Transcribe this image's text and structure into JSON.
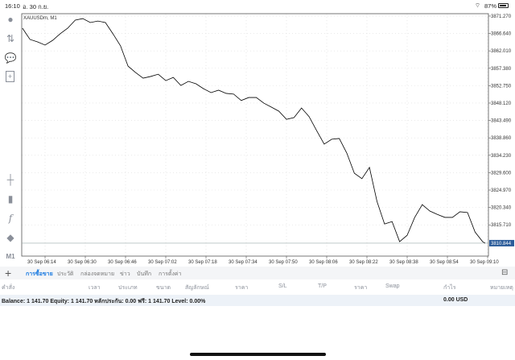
{
  "status": {
    "time": "16:10",
    "date": "อ. 30 ก.ย.",
    "battery": "87%"
  },
  "toolbar": {
    "icons": [
      "person-icon",
      "arrows-icon",
      "chat-icon",
      "add-document-icon",
      "crosshair-icon",
      "candlestick-icon",
      "function-icon",
      "shapes-icon"
    ],
    "timeframe": "M1"
  },
  "chart_data": {
    "type": "line",
    "title": "XAUUSDm, M1",
    "x": [
      "06:05",
      "06:08",
      "06:11",
      "06:14",
      "06:17",
      "06:20",
      "06:23",
      "06:26",
      "06:29",
      "06:32",
      "06:35",
      "06:38",
      "06:41",
      "06:44",
      "06:47",
      "06:50",
      "06:53",
      "06:56",
      "06:59",
      "07:02",
      "07:05",
      "07:08",
      "07:11",
      "07:14",
      "07:17",
      "07:20",
      "07:23",
      "07:26",
      "07:29",
      "07:32",
      "07:35",
      "07:38",
      "07:41",
      "07:44",
      "07:47",
      "07:50",
      "07:53",
      "07:56",
      "07:59",
      "08:02",
      "08:05",
      "08:08",
      "08:11",
      "08:14",
      "08:17",
      "08:20",
      "08:23",
      "08:26",
      "08:29",
      "08:32",
      "08:35",
      "08:38",
      "08:41",
      "08:44",
      "08:47",
      "08:50",
      "08:53",
      "08:56",
      "08:59",
      "09:02",
      "09:05",
      "09:08",
      "09:09"
    ],
    "y": [
      3868.05,
      3865.05,
      3864.4,
      3863.55,
      3864.8,
      3866.55,
      3868.05,
      3870.2,
      3870.6,
      3869.55,
      3869.95,
      3869.55,
      3866.55,
      3863.35,
      3857.95,
      3856.25,
      3854.75,
      3855.2,
      3855.8,
      3854.1,
      3854.95,
      3852.8,
      3853.9,
      3853.25,
      3851.95,
      3850.9,
      3851.55,
      3850.7,
      3850.5,
      3848.8,
      3849.6,
      3849.6,
      3848.1,
      3847.05,
      3845.95,
      3843.8,
      3844.25,
      3846.8,
      3844.5,
      3840.8,
      3837.2,
      3838.5,
      3838.7,
      3834.8,
      3829.45,
      3828.0,
      3831.0,
      3821.95,
      3815.95,
      3816.6,
      3811.25,
      3812.95,
      3817.7,
      3821.1,
      3819.4,
      3818.5,
      3817.7,
      3817.7,
      3819.2,
      3819.0,
      3813.8,
      3811.25,
      3810.844
    ],
    "x_ticks": [
      "30 Sep 06:14",
      "30 Sep 06:30",
      "30 Sep 06:46",
      "30 Sep 07:02",
      "30 Sep 07:18",
      "30 Sep 07:34",
      "30 Sep 07:50",
      "30 Sep 08:06",
      "30 Sep 08:22",
      "30 Sep 08:38",
      "30 Sep 08:54",
      "30 Sep 09:10"
    ],
    "y_ticks": [
      "3871.270",
      "3866.640",
      "3862.010",
      "3857.380",
      "3852.750",
      "3848.120",
      "3843.490",
      "3838.860",
      "3834.230",
      "3829.600",
      "3824.970",
      "3820.340",
      "3815.710"
    ],
    "current_price": "3810.844",
    "ylim": [
      3807.4,
      3871.9
    ],
    "grid": true,
    "colors": {
      "line": "#000000",
      "price_label": "#2b5c9a"
    }
  },
  "tabs": [
    "การซื้อขาย",
    "ประวัติ",
    "กล่องจดหมาย",
    "ข่าว",
    "บันทึก",
    "การตั้งค่า"
  ],
  "active_tab": 0,
  "columns": [
    "คำสั่ง",
    "เวลา",
    "ประเภท",
    "ขนาด",
    "สัญลักษณ์",
    "ราคา",
    "S/L",
    "T/P",
    "ราคา",
    "Swap",
    "กำไร",
    "หมายเหตุ"
  ],
  "balance": {
    "text": "Balance: 1 141.70 Equity: 1 141.70 หลักประกัน: 0.00 ฟรี: 1 141.70 Level: 0.00%",
    "profit": "0.00  USD"
  },
  "accent": "#1a7ae0"
}
